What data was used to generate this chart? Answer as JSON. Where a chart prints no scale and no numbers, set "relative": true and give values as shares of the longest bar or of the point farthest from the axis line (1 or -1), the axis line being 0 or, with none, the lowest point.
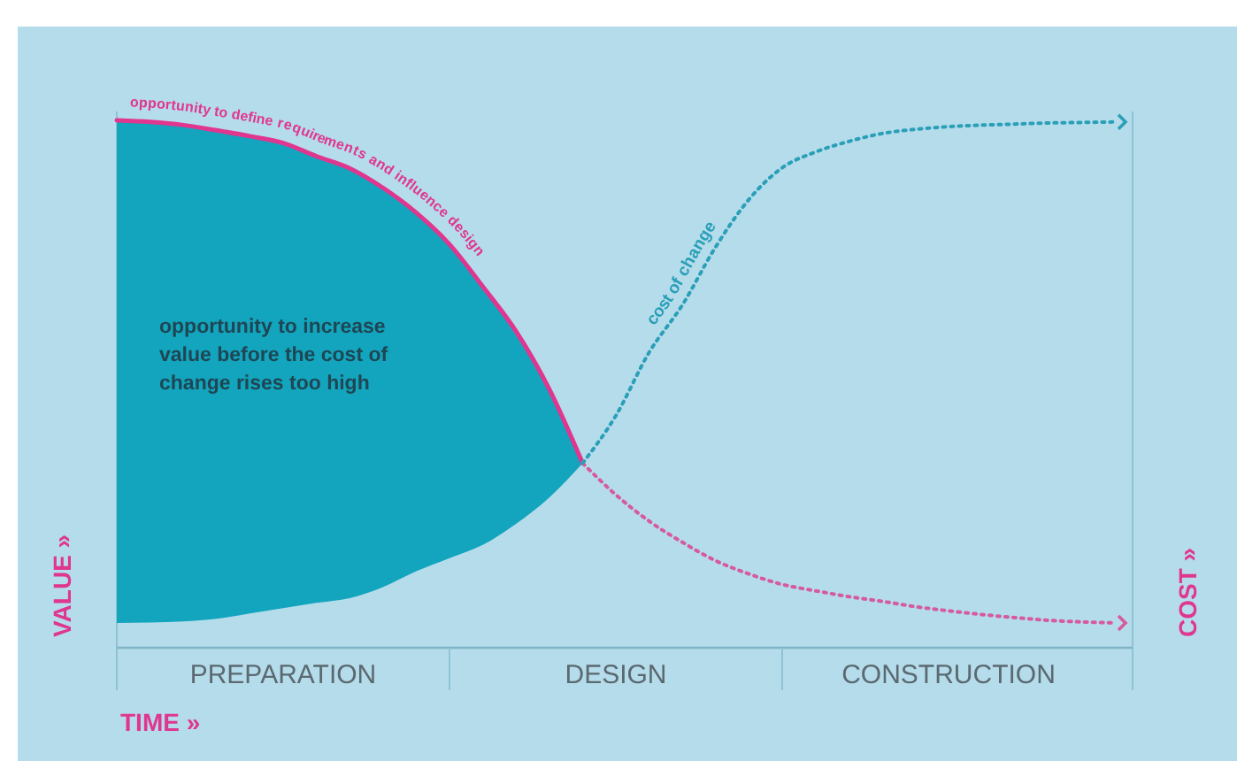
{
  "chart_data": {
    "type": "line",
    "relative": true,
    "xlabel": "TIME »",
    "ylabel": "VALUE »",
    "y2label": "COST »",
    "categories": [
      null,
      null,
      null,
      null,
      null,
      "PREPARATION",
      null,
      null,
      null,
      null,
      null,
      null,
      null,
      null,
      null,
      "DESIGN",
      null,
      null,
      null,
      null,
      null,
      null,
      null,
      null,
      null,
      "CONSTRUCTION",
      null,
      null,
      null,
      null,
      null
    ],
    "tick_labels": "x",
    "legend": false,
    "grid": false,
    "marker": "none",
    "series": [
      {
        "name": "opportunity to define requirements and influence design",
        "color": "#e0368f",
        "line_style": "solid",
        "values": [
          1.0,
          0.997,
          0.991,
          0.981,
          0.97,
          0.957,
          0.932,
          0.909,
          0.872,
          0.825,
          0.765,
          0.685,
          0.6,
          0.49,
          0.35,
          null,
          null,
          null,
          null,
          null,
          null,
          null,
          null,
          null,
          null,
          null,
          null,
          null,
          null,
          null,
          null
        ],
        "lower": [
          0.047,
          0.048,
          0.05,
          0.055,
          0.065,
          0.075,
          0.085,
          0.094,
          0.115,
          0.145,
          0.17,
          0.195,
          0.235,
          0.285,
          0.35,
          null,
          null,
          null,
          null,
          null,
          null,
          null,
          null,
          null,
          null,
          null,
          null,
          null,
          null,
          null,
          null
        ],
        "upper": [
          1.0,
          0.997,
          0.991,
          0.981,
          0.97,
          0.957,
          0.932,
          0.909,
          0.872,
          0.825,
          0.765,
          0.685,
          0.6,
          0.49,
          0.35,
          null,
          null,
          null,
          null,
          null,
          null,
          null,
          null,
          null,
          null,
          null,
          null,
          null,
          null,
          null,
          null
        ]
      },
      {
        "color": "#d65a9e",
        "line_style": "dotted",
        "values": [
          null,
          null,
          null,
          null,
          null,
          null,
          null,
          null,
          null,
          null,
          null,
          null,
          null,
          null,
          0.35,
          0.29,
          0.24,
          0.2,
          0.165,
          0.14,
          0.12,
          0.108,
          0.097,
          0.088,
          0.078,
          0.07,
          0.063,
          0.057,
          0.052,
          0.049,
          0.047
        ]
      },
      {
        "name": "cost of change",
        "color": "#2a9fb8",
        "line_style": "dotted",
        "values": [
          null,
          null,
          null,
          null,
          null,
          null,
          null,
          null,
          null,
          null,
          null,
          null,
          null,
          null,
          0.35,
          0.44,
          0.56,
          0.65,
          0.76,
          0.85,
          0.91,
          0.94,
          0.96,
          0.975,
          0.983,
          0.988,
          0.991,
          0.993,
          0.995,
          0.996,
          0.997
        ]
      }
    ],
    "annotations": [
      "opportunity to increase value before the cost of change rises too high"
    ]
  }
}
